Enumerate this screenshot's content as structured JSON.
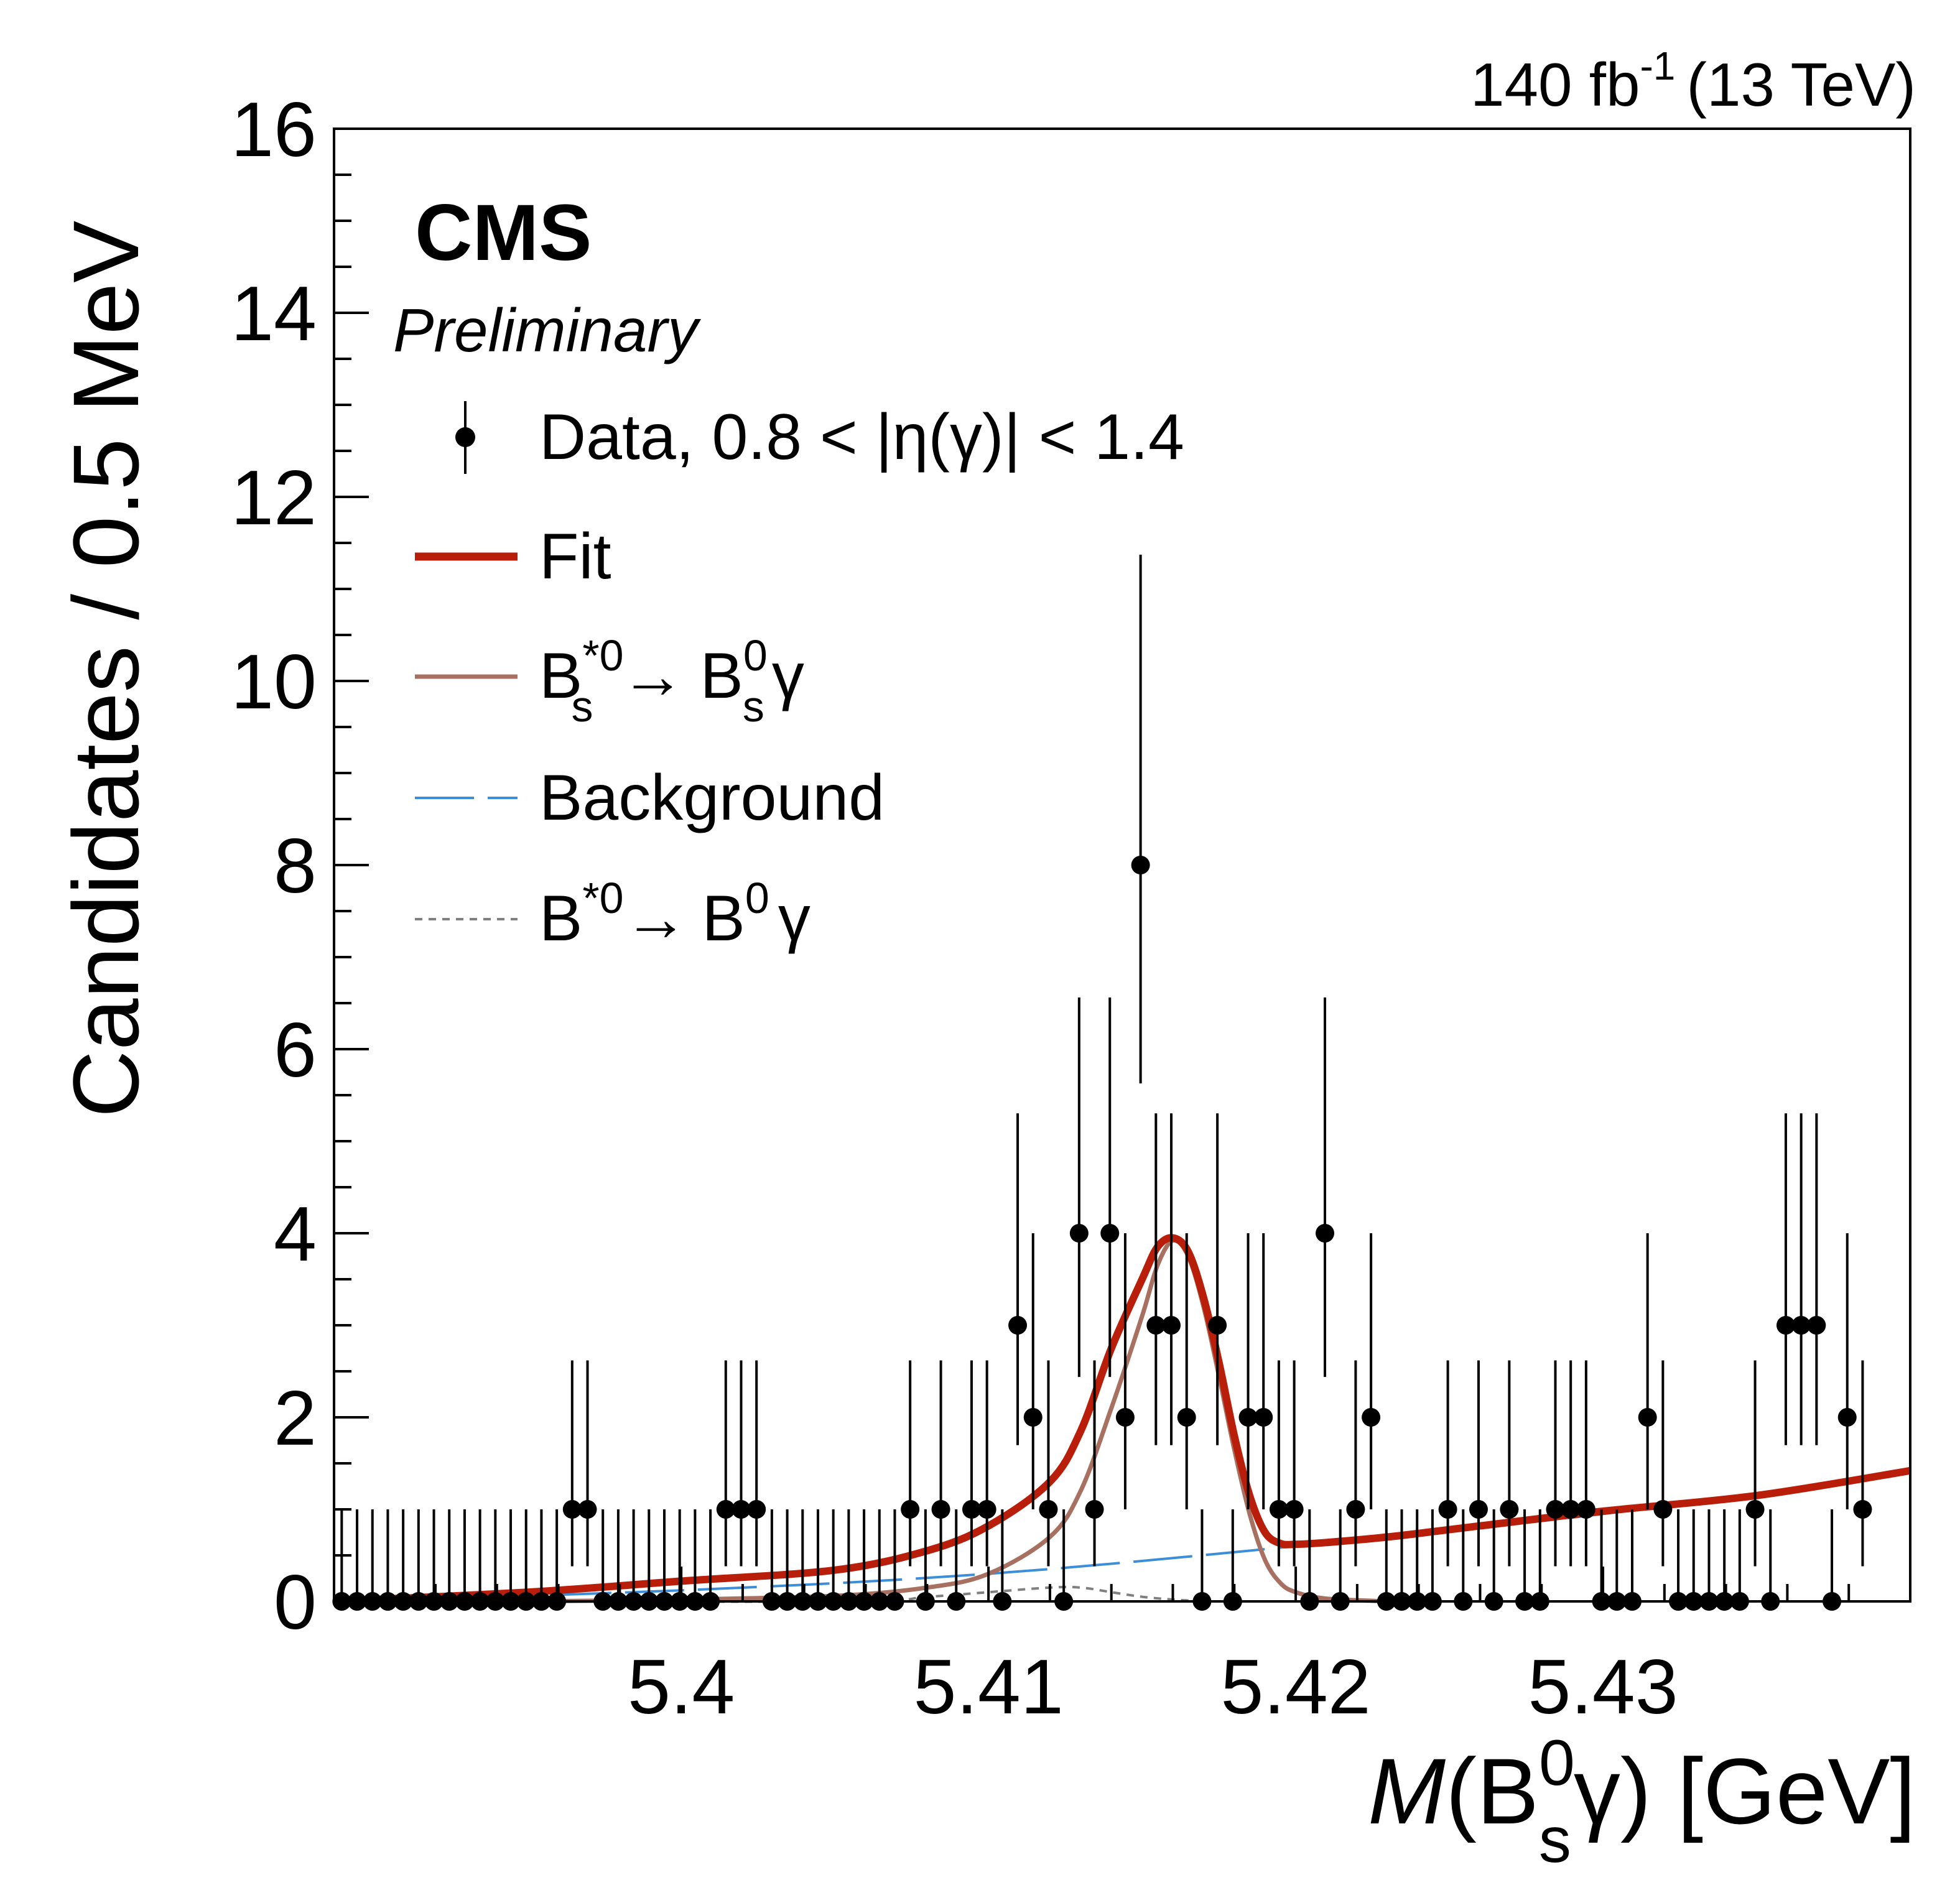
{
  "chart_data": {
    "type": "scatter",
    "title": "",
    "lumi_label": {
      "value": "140 fb",
      "exponent": "-1",
      "suffix": "(13 TeV)"
    },
    "experiment": "CMS",
    "status": "Preliminary",
    "xlabel": {
      "var": "M",
      "open": "(B",
      "sup": "0",
      "sub": "s",
      "close": "γ) [GeV]"
    },
    "ylabel": "Candidates / 0.5 MeV",
    "xlim": [
      5.3887,
      5.44
    ],
    "ylim": [
      0,
      16
    ],
    "x_ticks": [
      5.4,
      5.41,
      5.42,
      5.43
    ],
    "x_tick_labels": [
      "5.4",
      "5.41",
      "5.42",
      "5.43"
    ],
    "y_ticks": [
      0,
      2,
      4,
      6,
      8,
      10,
      12,
      14,
      16
    ],
    "y_tick_labels": [
      "0",
      "2",
      "4",
      "6",
      "8",
      "10",
      "12",
      "14",
      "16"
    ],
    "legend": {
      "position": "top-left",
      "data": "Data, 0.8 < |η(γ)| < 1.4",
      "fit": "Fit",
      "signal": {
        "a": "B",
        "a_sup": "*0",
        "a_sub": "s",
        "arrow": "→",
        "b": "B",
        "b_sup": "0",
        "b_sub": "s",
        "c": "γ"
      },
      "background": "Background",
      "reflection": {
        "a": "B",
        "a_sup": "*0",
        "arrow": "→",
        "b": "B",
        "b_sup": "0",
        "c": "γ"
      }
    },
    "colors": {
      "data": "#000000",
      "fit": "#b81e0a",
      "signal": "#a87060",
      "background": "#3d8ed9",
      "reflection": "#808080"
    },
    "series": [
      {
        "name": "Data",
        "bin_width": 0.0005,
        "first_bin_center": 5.38895,
        "values": [
          0,
          0,
          0,
          0,
          0,
          0,
          0,
          0,
          0,
          0,
          0,
          0,
          0,
          0,
          0,
          1,
          1,
          0,
          0,
          0,
          0,
          0,
          0,
          0,
          0,
          1,
          1,
          1,
          0,
          0,
          0,
          0,
          0,
          0,
          0,
          0,
          0,
          1,
          0,
          1,
          0,
          1,
          1,
          0,
          3,
          2,
          1,
          0,
          4,
          1,
          4,
          2,
          8,
          3,
          3,
          2,
          0,
          3,
          0,
          2,
          2,
          1,
          1,
          0,
          4,
          0,
          1,
          2,
          0,
          0,
          0,
          0,
          1,
          0,
          1,
          0,
          1,
          0,
          0,
          1,
          1,
          1,
          0,
          0,
          0,
          2,
          1,
          0,
          0,
          0,
          0,
          0,
          1,
          0,
          3,
          3,
          3,
          0,
          2,
          1
        ]
      },
      {
        "name": "Fit",
        "x": [
          5.3887,
          5.395,
          5.4,
          5.405,
          5.408,
          5.41,
          5.412,
          5.413,
          5.414,
          5.415,
          5.4155,
          5.416,
          5.4165,
          5.417,
          5.4175,
          5.418,
          5.4185,
          5.419,
          5.4195,
          5.42,
          5.421,
          5.423,
          5.426,
          5.43,
          5.435,
          5.44
        ],
        "y": [
          0,
          0.1,
          0.22,
          0.34,
          0.55,
          0.82,
          1.3,
          1.85,
          2.75,
          3.5,
          3.85,
          3.95,
          3.8,
          3.3,
          2.6,
          1.8,
          1.15,
          0.75,
          0.63,
          0.62,
          0.64,
          0.7,
          0.82,
          0.98,
          1.15,
          1.42
        ]
      },
      {
        "name": "Bs*0 -> Bs0 gamma",
        "x": [
          5.3887,
          5.395,
          5.4,
          5.405,
          5.408,
          5.41,
          5.412,
          5.413,
          5.414,
          5.415,
          5.4155,
          5.416,
          5.4165,
          5.417,
          5.4175,
          5.418,
          5.4185,
          5.419,
          5.4195,
          5.42,
          5.421,
          5.423
        ],
        "y": [
          0,
          0,
          0.02,
          0.06,
          0.15,
          0.3,
          0.7,
          1.2,
          2.1,
          3.1,
          3.65,
          3.92,
          3.75,
          3.2,
          2.45,
          1.65,
          0.95,
          0.45,
          0.2,
          0.1,
          0.03,
          0
        ]
      },
      {
        "name": "Background",
        "x": [
          5.3887,
          5.4,
          5.41,
          5.42,
          5.43,
          5.44
        ],
        "y": [
          0,
          0.12,
          0.3,
          0.6,
          0.95,
          1.4
        ]
      },
      {
        "name": "B*0 -> B0 gamma",
        "x": [
          5.3887,
          5.405,
          5.408,
          5.41,
          5.412,
          5.413,
          5.414,
          5.415,
          5.416,
          5.417
        ],
        "y": [
          0,
          0,
          0.05,
          0.1,
          0.15,
          0.15,
          0.1,
          0.05,
          0.02,
          0
        ]
      }
    ]
  }
}
